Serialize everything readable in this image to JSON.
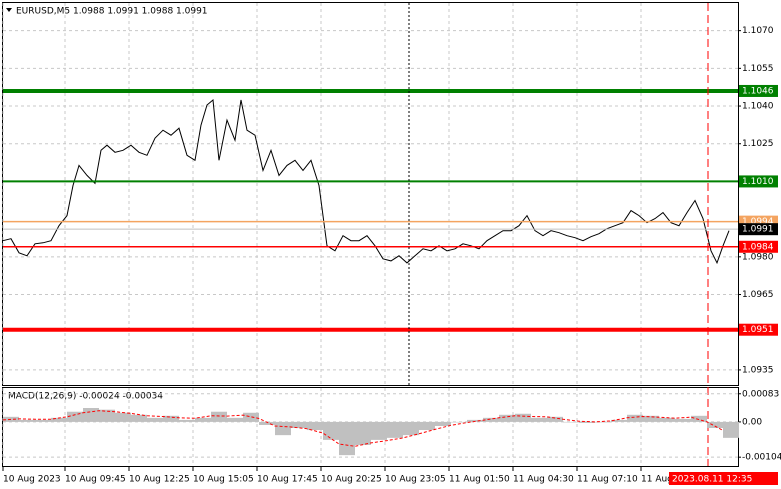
{
  "chart_data": [
    {
      "type": "line",
      "title": "EURUSD,M5 1.0988 1.0991 1.0988 1.0991",
      "xlim": [
        0,
        367.5
      ],
      "xticks": [
        {
          "value": 0,
          "label": "10 Aug 2023"
        },
        {
          "value": 31,
          "label": "10 Aug 09:45"
        },
        {
          "value": 63,
          "label": "10 Aug 12:25"
        },
        {
          "value": 95,
          "label": "10 Aug 15:05"
        },
        {
          "value": 127,
          "label": "10 Aug 17:45"
        },
        {
          "value": 159,
          "label": "10 Aug 20:25"
        },
        {
          "value": 191,
          "label": "10 Aug 23:05"
        },
        {
          "value": 223,
          "label": "11 Aug 01:50"
        },
        {
          "value": 255,
          "label": "11 Aug 04:30"
        },
        {
          "value": 287,
          "label": "11 Aug 07:10"
        },
        {
          "value": 319,
          "label": "11 Aug"
        }
      ],
      "ylim": [
        1.0929,
        1.1081
      ],
      "yticks": [
        {
          "value": 1.107,
          "label": "1.1070"
        },
        1.1055,
        {
          "value": 1.104,
          "label": "1.1040"
        },
        1.1025,
        {
          "value": 1.098,
          "label": "1.0980"
        },
        1.0965,
        1.0935
      ],
      "grid": true,
      "series": [
        {
          "color": "#000000",
          "x": [
            0,
            4,
            8,
            12,
            16,
            20,
            24,
            28,
            32,
            35,
            38,
            42,
            46,
            49,
            52,
            56,
            60,
            64,
            68,
            72,
            76,
            80,
            84,
            88,
            92,
            96,
            99,
            102,
            105,
            108,
            112,
            116,
            119,
            122,
            126,
            130,
            134,
            138,
            142,
            146,
            150,
            154,
            158,
            162,
            166,
            170,
            174,
            178,
            182,
            186,
            190,
            194,
            198,
            202,
            206,
            210,
            214,
            218,
            222,
            226,
            230,
            234,
            238,
            242,
            246,
            250,
            254,
            258,
            262,
            266,
            270,
            274,
            278,
            282,
            286,
            290,
            294,
            298,
            302,
            306,
            310,
            314,
            318,
            322,
            326,
            330,
            334,
            338,
            342,
            346,
            350,
            354,
            357,
            360,
            363
          ],
          "values": [
            1.09864,
            1.09872,
            1.09816,
            1.09804,
            1.09852,
            1.09856,
            1.09864,
            1.09924,
            1.09964,
            1.10084,
            1.10164,
            1.10124,
            1.10092,
            1.10224,
            1.10244,
            1.10216,
            1.10224,
            1.10244,
            1.10216,
            1.10204,
            1.10272,
            1.10304,
            1.10284,
            1.10312,
            1.10204,
            1.10184,
            1.10324,
            1.10404,
            1.10424,
            1.10184,
            1.10344,
            1.10264,
            1.10424,
            1.10304,
            1.10284,
            1.10144,
            1.10224,
            1.10124,
            1.10164,
            1.10184,
            1.10144,
            1.10184,
            1.10084,
            1.09844,
            1.09824,
            1.09884,
            1.09864,
            1.09864,
            1.09884,
            1.09844,
            1.09792,
            1.09784,
            1.09804,
            1.09776,
            1.09804,
            1.09832,
            1.09824,
            1.09844,
            1.09824,
            1.09832,
            1.09852,
            1.09844,
            1.09832,
            1.09864,
            1.09884,
            1.09904,
            1.09904,
            1.09924,
            1.09964,
            1.09904,
            1.09884,
            1.09904,
            1.09896,
            1.09884,
            1.09876,
            1.09864,
            1.0988,
            1.09892,
            1.09912,
            1.09924,
            1.09936,
            1.09984,
            1.09964,
            1.09936,
            1.09952,
            1.09976,
            1.09936,
            1.09924,
            1.09976,
            1.10024,
            1.09952,
            1.09824,
            1.09776,
            1.09844,
            1.09904
          ]
        }
      ],
      "levels": [
        {
          "value": 1.1046,
          "color": "#008000",
          "label_color": "#008000"
        },
        {
          "value": 1.101,
          "color": "#008000",
          "label_color": "#008000"
        },
        {
          "value": 1.0994,
          "color": "#f4a460",
          "label_color": "#f4a460"
        },
        {
          "value": 1.0991,
          "color": "#c0c0c0",
          "label_color": "#000000"
        },
        {
          "value": 1.0984,
          "color": "#ff0000",
          "label_color": "#ff0000"
        },
        {
          "value": 1.0951,
          "color": "#ff0000",
          "label_color": "#ff0000"
        }
      ],
      "level_labels": [
        "1.1046",
        "1.1010",
        "1.0994",
        "1.0991",
        "1.0984",
        "1.0951"
      ],
      "vlines": [
        {
          "x": 203,
          "color": "#000000"
        },
        {
          "x": 352.5,
          "color": "#ff0000",
          "label": "2023.08.11 12:35"
        }
      ]
    },
    {
      "type": "bar",
      "title": "MACD(12,26,9) -0.00024 -0.00034",
      "xlim": [
        0,
        367.5
      ],
      "ylim": [
        -0.0013,
        0.001
      ],
      "yticks": [
        0.00083,
        {
          "value": 0,
          "label": "0.00"
        },
        -0.00104
      ],
      "series": [
        {
          "type": "bar",
          "color": "#c0c0c0",
          "x": [
            0,
            8,
            16,
            24,
            32,
            40,
            48,
            56,
            64,
            72,
            80,
            88,
            96,
            104,
            112,
            120,
            128,
            136,
            144,
            152,
            160,
            168,
            176,
            184,
            192,
            200,
            208,
            216,
            224,
            232,
            240,
            248,
            256,
            264,
            272,
            280,
            288,
            296,
            304,
            312,
            320,
            328,
            336,
            344,
            352,
            360
          ],
          "values": [
            0.00015,
            6e-05,
            6e-05,
            0.00012,
            0.0003,
            0.00041,
            0.00036,
            0.00027,
            0.00021,
            0.00012,
            0.00018,
            6e-05,
            0.00012,
            0.0003,
            0.00012,
            0.00027,
            -9e-05,
            -0.00039,
            -0.00018,
            -0.00024,
            -0.00053,
            -0.00098,
            -0.00068,
            -0.00053,
            -0.00047,
            -0.00039,
            -0.00024,
            -0.00012,
            0,
            6e-05,
            0.00012,
            0.00021,
            0.00024,
            0.00012,
            0.00015,
            0,
            -3e-05,
            0,
            6e-05,
            0.00021,
            0.00018,
            0.00012,
            9e-05,
            0.00018,
            -0.00018,
            -0.00047
          ]
        },
        {
          "type": "line",
          "color": "#ff0000",
          "x": [
            0,
            8,
            16,
            24,
            32,
            40,
            48,
            56,
            64,
            72,
            80,
            88,
            96,
            104,
            112,
            120,
            128,
            136,
            144,
            152,
            160,
            168,
            176,
            184,
            192,
            200,
            208,
            216,
            224,
            232,
            240,
            248,
            256,
            264,
            272,
            280,
            288,
            296,
            304,
            312,
            320,
            328,
            336,
            344,
            352,
            360
          ],
          "values": [
            6e-05,
            9e-05,
            8e-05,
            8e-05,
            0.00015,
            0.00027,
            0.00033,
            0.0003,
            0.00025,
            0.00018,
            0.00016,
            0.00012,
            0.00011,
            0.00018,
            0.00017,
            0.0002,
            0.0001,
            -0.00012,
            -0.00015,
            -0.0002,
            -0.00033,
            -0.00065,
            -0.00072,
            -0.00062,
            -0.00055,
            -0.00047,
            -0.00035,
            -0.00022,
            -0.0001,
            -2e-05,
            5e-05,
            0.00012,
            0.00018,
            0.00016,
            0.00015,
            8e-05,
            2e-05,
            0,
            3e-05,
            0.00012,
            0.00016,
            0.00014,
            0.00011,
            0.00014,
            0,
            -0.00025
          ]
        }
      ]
    }
  ]
}
